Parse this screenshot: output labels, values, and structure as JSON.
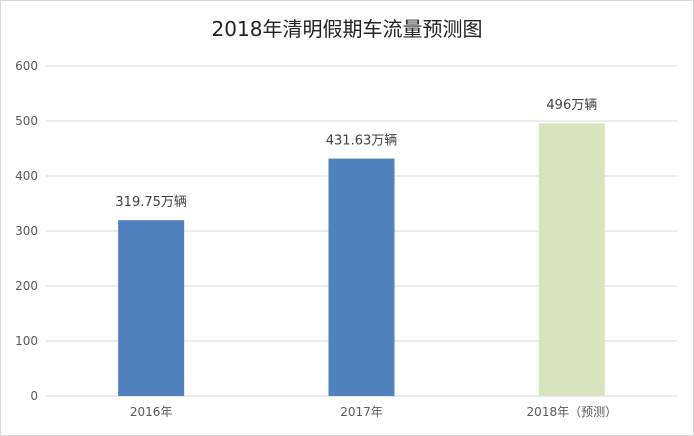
{
  "chart_data": {
    "type": "bar",
    "title": "2018年清明假期车流量预测图",
    "categories": [
      "2016年",
      "2017年",
      "2018年（预测）"
    ],
    "values": [
      319.75,
      431.63,
      496
    ],
    "data_labels": [
      "319.75万辆",
      "431.63万辆",
      "496万辆"
    ],
    "bar_colors": [
      "#4f81bd",
      "#4f81bd",
      "#d7e4bd"
    ],
    "gridline_color": "#d9d9d9",
    "ylim": [
      0,
      600
    ],
    "yticks": [
      "0",
      "100",
      "200",
      "300",
      "400",
      "500",
      "600"
    ],
    "grid": true,
    "legend": "none"
  }
}
